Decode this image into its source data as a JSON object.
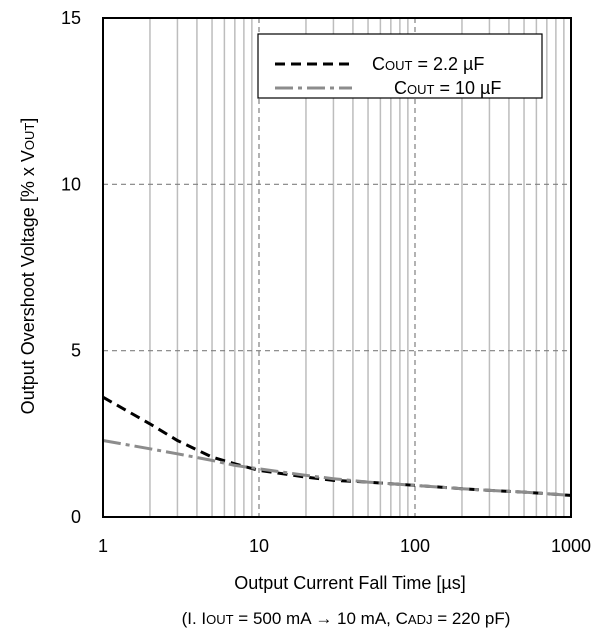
{
  "chart_data": {
    "type": "line",
    "x_scale": "log",
    "xlim": [
      1,
      1000
    ],
    "ylim": [
      0,
      15
    ],
    "xlabel": "Output Current Fall Time [µs]",
    "ylabel": {
      "main": "Output Overshoot Voltage [% x V",
      "sub": "OUT",
      "end": "]"
    },
    "x_ticks": [
      {
        "value": 1,
        "label": "1"
      },
      {
        "value": 10,
        "label": "10"
      },
      {
        "value": 100,
        "label": "100"
      },
      {
        "value": 1000,
        "label": "1000"
      }
    ],
    "y_ticks": [
      {
        "value": 0,
        "label": "0"
      },
      {
        "value": 5,
        "label": "5"
      },
      {
        "value": 10,
        "label": "10"
      },
      {
        "value": 15,
        "label": "15"
      }
    ],
    "grid": true,
    "legend_position": "top-right",
    "series": [
      {
        "key": "c22",
        "legend": {
          "prefix": "C",
          "sub": "OUT",
          "suffix": " = 2.2 µF"
        },
        "color": "#000000",
        "style": "dashed",
        "x": [
          1,
          2,
          3,
          5,
          7,
          10,
          20,
          30,
          50,
          100,
          200,
          300,
          500,
          1000
        ],
        "y": [
          3.6,
          2.8,
          2.3,
          1.8,
          1.6,
          1.4,
          1.2,
          1.1,
          1.05,
          0.95,
          0.85,
          0.8,
          0.75,
          0.65
        ]
      },
      {
        "key": "c10",
        "legend": {
          "prefix": "C",
          "sub": "OUT",
          "suffix": " = 10 µF"
        },
        "color": "#8c8c8c",
        "style": "dash-dot",
        "x": [
          1,
          2,
          3,
          5,
          7,
          10,
          20,
          30,
          50,
          100,
          200,
          300,
          500,
          1000
        ],
        "y": [
          2.3,
          2.05,
          1.9,
          1.7,
          1.55,
          1.45,
          1.25,
          1.15,
          1.05,
          0.95,
          0.85,
          0.8,
          0.75,
          0.65
        ]
      }
    ],
    "condition_note": {
      "part1": "(I. I",
      "sub1": "OUT",
      "part2": " = 500 mA → 10 mA,   C",
      "sub2": "ADJ",
      "part3": " = 220 pF)"
    },
    "colors": {
      "frame": "#000000",
      "major_grid": "#808080",
      "minor_grid": "#bdbdbd",
      "background": "#ffffff"
    }
  }
}
